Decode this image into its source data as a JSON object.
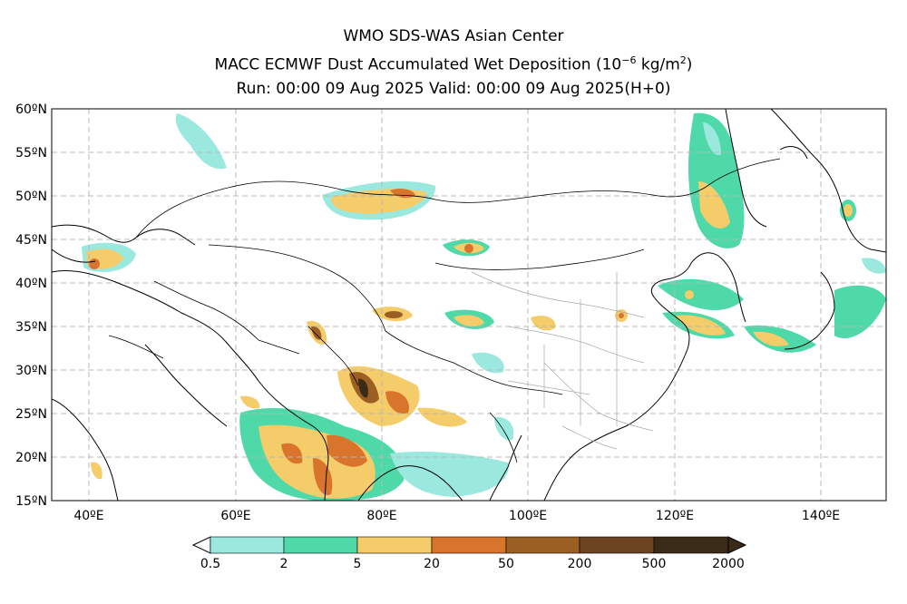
{
  "title": {
    "line1": "WMO SDS-WAS Asian Center",
    "line2_main": "MACC ECMWF Dust Accumulated Wet Deposition",
    "line2_unit_prefix": "(10",
    "line2_unit_exp": "−6",
    "line2_unit_mid": " kg/m",
    "line2_unit_exp2": "2",
    "line2_unit_suffix": ")",
    "line3": "Run: 00:00 09 Aug 2025     Valid: 00:00 09 Aug 2025(H+0)"
  },
  "axes": {
    "lat_labels": [
      "60ºN",
      "55ºN",
      "50ºN",
      "45ºN",
      "40ºN",
      "35ºN",
      "30ºN",
      "25ºN",
      "20ºN",
      "15ºN"
    ],
    "lon_labels": [
      "40ºE",
      "60ºE",
      "80ºE",
      "100ºE",
      "120ºE",
      "140ºE"
    ]
  },
  "colorbar": {
    "labels": [
      "0.5",
      "2",
      "5",
      "20",
      "50",
      "200",
      "500",
      "2000"
    ],
    "colors": [
      "#9be8df",
      "#4fd8a8",
      "#f5cc6a",
      "#d8742c",
      "#9b5f24",
      "#6b4321",
      "#3a2a18"
    ]
  }
}
